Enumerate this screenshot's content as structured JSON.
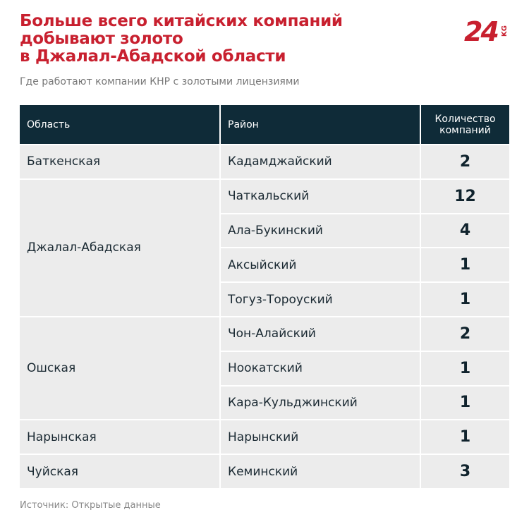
{
  "title": [
    "Больше всего китайских компаний",
    "добывают золото",
    "в Джалал-Абадской области"
  ],
  "subtitle": "Где работают компании КНР с золотыми лицензиями",
  "logo": {
    "main": "24",
    "sub": "KG"
  },
  "table": {
    "header": [
      "Область",
      "Район",
      "Количество компаний"
    ],
    "groups": [
      {
        "region": "Баткенская",
        "districts": [
          {
            "name": "Кадамджайский",
            "count": 2
          }
        ]
      },
      {
        "region": "Джалал-Абадская",
        "districts": [
          {
            "name": "Чаткальский",
            "count": 12
          },
          {
            "name": "Ала-Букинский",
            "count": 4
          },
          {
            "name": "Аксыйский",
            "count": 1
          },
          {
            "name": "Тогуз-Тороуский",
            "count": 1
          }
        ]
      },
      {
        "region": "Ошская",
        "districts": [
          {
            "name": "Чон-Алайский",
            "count": 2
          },
          {
            "name": "Ноокатский",
            "count": 1
          },
          {
            "name": "Кара-Кульджинский",
            "count": 1
          }
        ]
      },
      {
        "region": "Нарынская",
        "districts": [
          {
            "name": "Нарынский",
            "count": 1
          }
        ]
      },
      {
        "region": "Чуйская",
        "districts": [
          {
            "name": "Кеминский",
            "count": 3
          }
        ]
      }
    ]
  },
  "source": "Источник: Открытые данные"
}
